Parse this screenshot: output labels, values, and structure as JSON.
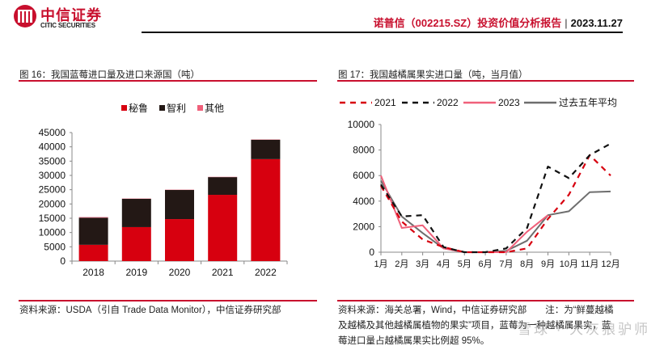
{
  "header": {
    "brand_cn": "中信证券",
    "brand_en": "CITIC SECURITIES",
    "report_title": "诺普信（002215.SZ）投资价值分析报告",
    "separator": "|",
    "date": "2023.11.27"
  },
  "left_figure": {
    "title": "图 16：我国蓝莓进口量及进口来源国（吨）",
    "source": "资料来源：USDA（引自 Trade Data Monitor），中信证券研究部"
  },
  "right_figure": {
    "title": "图 17：我国越橘属果实进口量（吨，当月值）",
    "source_lines": [
      "资料来源：海关总署，Wind，中信证券研究部　　注：为“鲜蔓越橘",
      "及越橘及其他越橘属植物的果实”项目，蓝莓为一种越橘属果实，蓝",
      "莓进口量占越橘属果实比例超 95%。"
    ]
  },
  "watermark": "雪球 · 大灰狼驴师",
  "chart_data": [
    {
      "type": "bar",
      "stacked": true,
      "title": "",
      "xlabel": "",
      "ylabel": "",
      "categories": [
        "2018",
        "2019",
        "2020",
        "2021",
        "2022"
      ],
      "series": [
        {
          "name": "秘鲁",
          "color": "#d7000f",
          "values": [
            5700,
            11900,
            14700,
            23200,
            35700
          ]
        },
        {
          "name": "智利",
          "color": "#231815",
          "values": [
            9500,
            9900,
            10200,
            6200,
            6800
          ]
        },
        {
          "name": "其他",
          "color": "#f0607a",
          "values": [
            200,
            100,
            100,
            100,
            100
          ]
        }
      ],
      "ylim": [
        0,
        45000
      ],
      "yticks": [
        "0",
        "5000",
        "10000",
        "15000",
        "20000",
        "25000",
        "30000",
        "35000",
        "40000",
        "45000"
      ],
      "grid": false,
      "legend": "top-center"
    },
    {
      "type": "line",
      "title": "",
      "xlabel": "",
      "ylabel": "",
      "categories": [
        "1月",
        "2月",
        "3月",
        "4月",
        "5月",
        "6月",
        "7月",
        "8月",
        "9月",
        "10月",
        "11月",
        "12月"
      ],
      "series": [
        {
          "name": "2021",
          "color": "#d7000f",
          "dash": true,
          "values": [
            5200,
            2400,
            1000,
            400,
            0,
            0,
            0,
            300,
            2600,
            4500,
            7600,
            6000
          ]
        },
        {
          "name": "2022",
          "color": "#111111",
          "dash": true,
          "values": [
            5300,
            2800,
            2900,
            400,
            0,
            0,
            300,
            1900,
            6700,
            5800,
            7600,
            8500
          ]
        },
        {
          "name": "2023",
          "color": "#f0607a",
          "dash": false,
          "values": [
            6000,
            1900,
            2100,
            300,
            0,
            0,
            0,
            1600,
            2900,
            null,
            null,
            null
          ]
        },
        {
          "name": "过去五年平均",
          "color": "#6e6e6e",
          "dash": false,
          "values": [
            5600,
            2800,
            1500,
            300,
            0,
            0,
            100,
            900,
            2900,
            3200,
            4700,
            4750
          ]
        }
      ],
      "ylim": [
        0,
        10000
      ],
      "yticks": [
        "0",
        "2000",
        "4000",
        "6000",
        "8000",
        "10000"
      ],
      "grid": false,
      "legend": "top-center"
    }
  ]
}
